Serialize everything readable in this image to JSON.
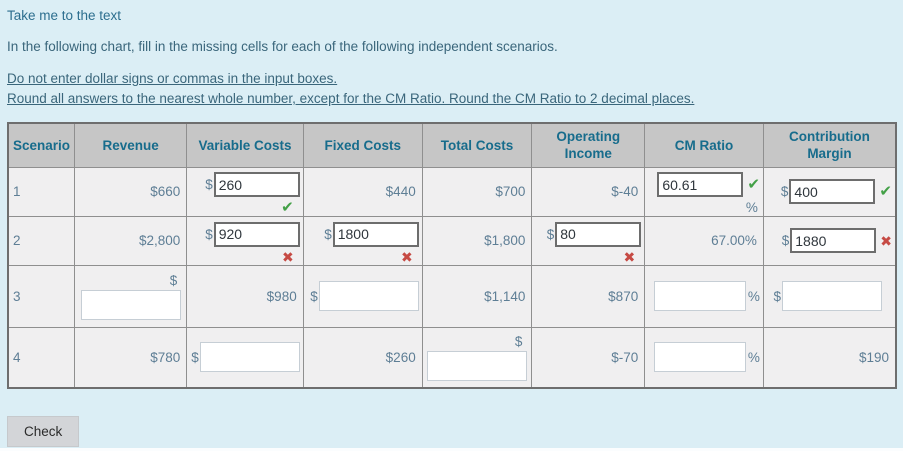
{
  "page": {
    "link": "Take me to the text",
    "intro": "In the following chart, fill in the missing cells for each of the following independent scenarios.",
    "note1": "Do not enter dollar signs or commas in the input boxes.",
    "note2": "Round all answers to the nearest whole number, except for the CM Ratio. Round the CM Ratio to 2 decimal places.",
    "check_button": "Check"
  },
  "symbols": {
    "dollar": "$",
    "percent": "%"
  },
  "icons": {
    "check": "✔",
    "x": "✖"
  },
  "colors": {
    "page_bg": "#dbeef5",
    "header_bg": "#c6c6c6",
    "header_text": "#176c8c",
    "value_text": "#5e7e95",
    "check_green": "#43a047",
    "x_red": "#c64a44"
  },
  "table": {
    "headers": [
      "Scenario",
      "Revenue",
      "Variable Costs",
      "Fixed Costs",
      "Total Costs",
      "Operating Income",
      "CM Ratio",
      "Contribution Margin"
    ],
    "rows": [
      {
        "cells": [
          {
            "type": "scenario",
            "name": "scenario",
            "text": "1"
          },
          {
            "type": "static",
            "name": "revenue",
            "text": "$660"
          },
          {
            "type": "input",
            "name": "variable-costs",
            "value": "260",
            "filled": true,
            "mark": "check",
            "markPos": "below",
            "align": "top"
          },
          {
            "type": "static",
            "name": "fixed-costs",
            "text": "$440"
          },
          {
            "type": "static",
            "name": "total-costs",
            "text": "$700"
          },
          {
            "type": "static",
            "name": "operating-income",
            "text": "$-40"
          },
          {
            "type": "ratio",
            "name": "cm-ratio",
            "value": "60.61",
            "filled": true,
            "mark": "check",
            "pct": "below",
            "align": "top"
          },
          {
            "type": "input",
            "name": "contribution-margin",
            "value": "400",
            "filled": true,
            "mark": "check",
            "markPos": "right"
          }
        ]
      },
      {
        "cells": [
          {
            "type": "scenario",
            "name": "scenario",
            "text": "2"
          },
          {
            "type": "static",
            "name": "revenue",
            "text": "$2,800"
          },
          {
            "type": "input",
            "name": "variable-costs",
            "value": "920",
            "filled": true,
            "mark": "x",
            "markPos": "below",
            "align": "top"
          },
          {
            "type": "input",
            "name": "fixed-costs",
            "value": "1800",
            "filled": true,
            "mark": "x",
            "markPos": "below",
            "align": "top"
          },
          {
            "type": "static",
            "name": "total-costs",
            "text": "$1,800"
          },
          {
            "type": "input",
            "name": "operating-income",
            "value": "80",
            "filled": true,
            "mark": "x",
            "markPos": "below",
            "align": "top"
          },
          {
            "type": "ratio-static",
            "name": "cm-ratio",
            "text": "67.00%"
          },
          {
            "type": "input",
            "name": "contribution-margin",
            "value": "1880",
            "filled": true,
            "mark": "x",
            "markPos": "right"
          }
        ]
      },
      {
        "cells": [
          {
            "type": "scenario",
            "name": "scenario",
            "text": "3"
          },
          {
            "type": "stacked",
            "name": "revenue",
            "value": "",
            "filled": false
          },
          {
            "type": "static",
            "name": "variable-costs",
            "text": "$980"
          },
          {
            "type": "input",
            "name": "fixed-costs",
            "value": "",
            "filled": false
          },
          {
            "type": "static",
            "name": "total-costs",
            "text": "$1,140"
          },
          {
            "type": "static",
            "name": "operating-income",
            "text": "$870"
          },
          {
            "type": "ratio",
            "name": "cm-ratio",
            "value": "",
            "filled": false,
            "pct": "inline",
            "w": "w92"
          },
          {
            "type": "input",
            "name": "contribution-margin",
            "value": "",
            "filled": false,
            "cls": "pr12"
          }
        ]
      },
      {
        "cells": [
          {
            "type": "scenario",
            "name": "scenario",
            "text": "4"
          },
          {
            "type": "static",
            "name": "revenue",
            "text": "$780"
          },
          {
            "type": "input",
            "name": "variable-costs",
            "value": "",
            "filled": false
          },
          {
            "type": "static",
            "name": "fixed-costs",
            "text": "$260"
          },
          {
            "type": "stacked",
            "name": "total-costs",
            "value": "",
            "filled": false
          },
          {
            "type": "static",
            "name": "operating-income",
            "text": "$-70"
          },
          {
            "type": "ratio",
            "name": "cm-ratio",
            "value": "",
            "filled": false,
            "pct": "inline",
            "w": "w92"
          },
          {
            "type": "static",
            "name": "contribution-margin",
            "text": "$190"
          }
        ]
      }
    ]
  }
}
